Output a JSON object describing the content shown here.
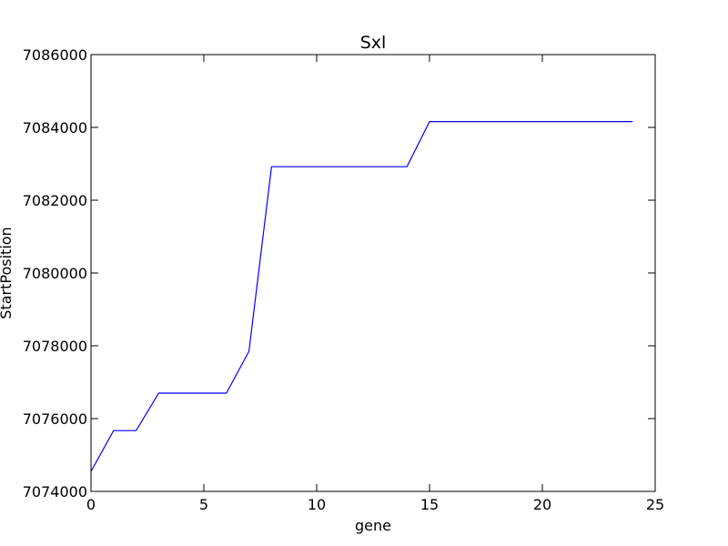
{
  "chart_data": {
    "type": "line",
    "title": "Sxl",
    "xlabel": "gene",
    "ylabel": "StartPosition",
    "xlim": [
      0,
      25
    ],
    "ylim": [
      7074000,
      7086000
    ],
    "xticks": [
      0,
      5,
      10,
      15,
      20,
      25
    ],
    "yticks": [
      7074000,
      7076000,
      7078000,
      7080000,
      7082000,
      7084000,
      7086000
    ],
    "xtick_labels": [
      "0",
      "5",
      "10",
      "15",
      "20",
      "25"
    ],
    "ytick_labels": [
      "7074000",
      "7076000",
      "7078000",
      "7080000",
      "7082000",
      "7084000",
      "7086000"
    ],
    "grid": false,
    "series": [
      {
        "color": "#0000ff",
        "x": [
          0,
          1,
          2,
          3,
          4,
          5,
          6,
          7,
          8,
          9,
          10,
          11,
          12,
          13,
          14,
          15,
          16,
          17,
          18,
          19,
          20,
          21,
          22,
          23,
          24
        ],
        "values": [
          7074550,
          7075670,
          7075670,
          7076700,
          7076700,
          7076700,
          7076700,
          7077850,
          7082920,
          7082920,
          7082920,
          7082920,
          7082920,
          7082920,
          7082920,
          7084160,
          7084160,
          7084160,
          7084160,
          7084160,
          7084160,
          7084160,
          7084160,
          7084160,
          7084160
        ]
      }
    ]
  }
}
